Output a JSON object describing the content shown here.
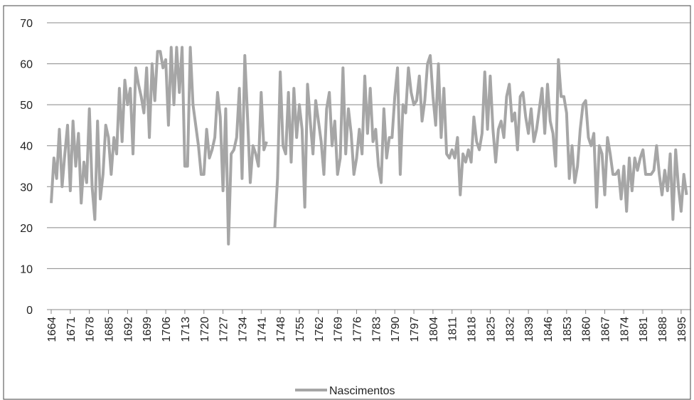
{
  "chart_data": {
    "type": "line",
    "categories": [
      "1664",
      null,
      null,
      null,
      null,
      null,
      null,
      "1671",
      null,
      null,
      null,
      null,
      null,
      null,
      "1678",
      null,
      null,
      null,
      null,
      null,
      null,
      "1685",
      null,
      null,
      null,
      null,
      null,
      null,
      "1692",
      null,
      null,
      null,
      null,
      null,
      null,
      "1699",
      null,
      null,
      null,
      null,
      null,
      null,
      "1706",
      null,
      null,
      null,
      null,
      null,
      null,
      "1713",
      null,
      null,
      null,
      null,
      null,
      null,
      "1720",
      null,
      null,
      null,
      null,
      null,
      null,
      "1727",
      null,
      null,
      null,
      null,
      null,
      null,
      "1734",
      null,
      null,
      null,
      null,
      null,
      null,
      "1741",
      null,
      null,
      null,
      null,
      null,
      null,
      "1748",
      null,
      null,
      null,
      null,
      null,
      null,
      "1755",
      null,
      null,
      null,
      null,
      null,
      null,
      "1762",
      null,
      null,
      null,
      null,
      null,
      null,
      "1769",
      null,
      null,
      null,
      null,
      null,
      null,
      "1776",
      null,
      null,
      null,
      null,
      null,
      null,
      "1783",
      null,
      null,
      null,
      null,
      null,
      null,
      "1790",
      null,
      null,
      null,
      null,
      null,
      null,
      "1797",
      null,
      null,
      null,
      null,
      null,
      null,
      "1804",
      null,
      null,
      null,
      null,
      null,
      null,
      "1811",
      null,
      null,
      null,
      null,
      null,
      null,
      "1818",
      null,
      null,
      null,
      null,
      null,
      null,
      "1825",
      null,
      null,
      null,
      null,
      null,
      null,
      "1832",
      null,
      null,
      null,
      null,
      null,
      null,
      "1839",
      null,
      null,
      null,
      null,
      null,
      null,
      "1846",
      null,
      null,
      null,
      null,
      null,
      null,
      "1853",
      null,
      null,
      null,
      null,
      null,
      null,
      "1860",
      null,
      null,
      null,
      null,
      null,
      null,
      "1867",
      null,
      null,
      null,
      null,
      null,
      null,
      "1874",
      null,
      null,
      null,
      null,
      null,
      null,
      "1881",
      null,
      null,
      null,
      null,
      null,
      null,
      "1888",
      null,
      null,
      null,
      null,
      null,
      null,
      "1895",
      null,
      null
    ],
    "series": [
      {
        "name": "Nascimentos",
        "color": "#a6a6a6",
        "values": [
          26,
          37,
          32,
          44,
          30,
          38,
          45,
          29,
          46,
          35,
          43,
          26,
          36,
          31,
          49,
          30,
          22,
          46,
          27,
          33,
          45,
          42,
          33,
          42,
          38,
          54,
          41,
          56,
          50,
          54,
          38,
          59,
          55,
          52,
          48,
          59,
          42,
          60,
          51,
          63,
          63,
          59,
          61,
          45,
          64,
          50,
          64,
          53,
          64,
          35,
          35,
          64,
          50,
          45,
          40,
          33,
          33,
          44,
          37,
          39,
          42,
          53,
          47,
          29,
          49,
          16,
          38,
          39,
          42,
          54,
          32,
          62,
          47,
          31,
          40,
          38,
          35,
          53,
          39,
          41,
          null,
          null,
          20,
          32,
          58,
          40,
          38,
          53,
          36,
          54,
          42,
          50,
          44,
          25,
          55,
          46,
          38,
          51,
          46,
          41,
          33,
          49,
          53,
          40,
          46,
          33,
          37,
          59,
          38,
          49,
          43,
          33,
          37,
          44,
          38,
          57,
          43,
          54,
          41,
          44,
          35,
          31,
          49,
          37,
          42,
          42,
          52,
          59,
          33,
          50,
          48,
          59,
          53,
          50,
          51,
          57,
          46,
          51,
          60,
          62,
          52,
          45,
          60,
          42,
          54,
          38,
          37,
          39,
          37,
          42,
          28,
          38,
          36,
          39,
          36,
          47,
          41,
          39,
          43,
          58,
          44,
          57,
          44,
          36,
          44,
          46,
          42,
          52,
          55,
          46,
          48,
          39,
          52,
          53,
          47,
          43,
          49,
          41,
          44,
          49,
          54,
          43,
          55,
          46,
          43,
          35,
          61,
          52,
          52,
          48,
          32,
          40,
          31,
          35,
          44,
          50,
          51,
          42,
          40,
          43,
          25,
          40,
          38,
          28,
          42,
          38,
          33,
          33,
          34,
          27,
          35,
          24,
          37,
          29,
          37,
          34,
          37,
          39,
          33,
          33,
          33,
          34,
          40,
          33,
          28,
          34,
          29,
          38,
          22,
          39,
          30,
          24,
          33,
          28
        ]
      }
    ],
    "ylim": [
      0,
      70
    ],
    "yticks": [
      0,
      10,
      20,
      30,
      40,
      50,
      60,
      70
    ],
    "grid": true,
    "legend": "bottom"
  }
}
